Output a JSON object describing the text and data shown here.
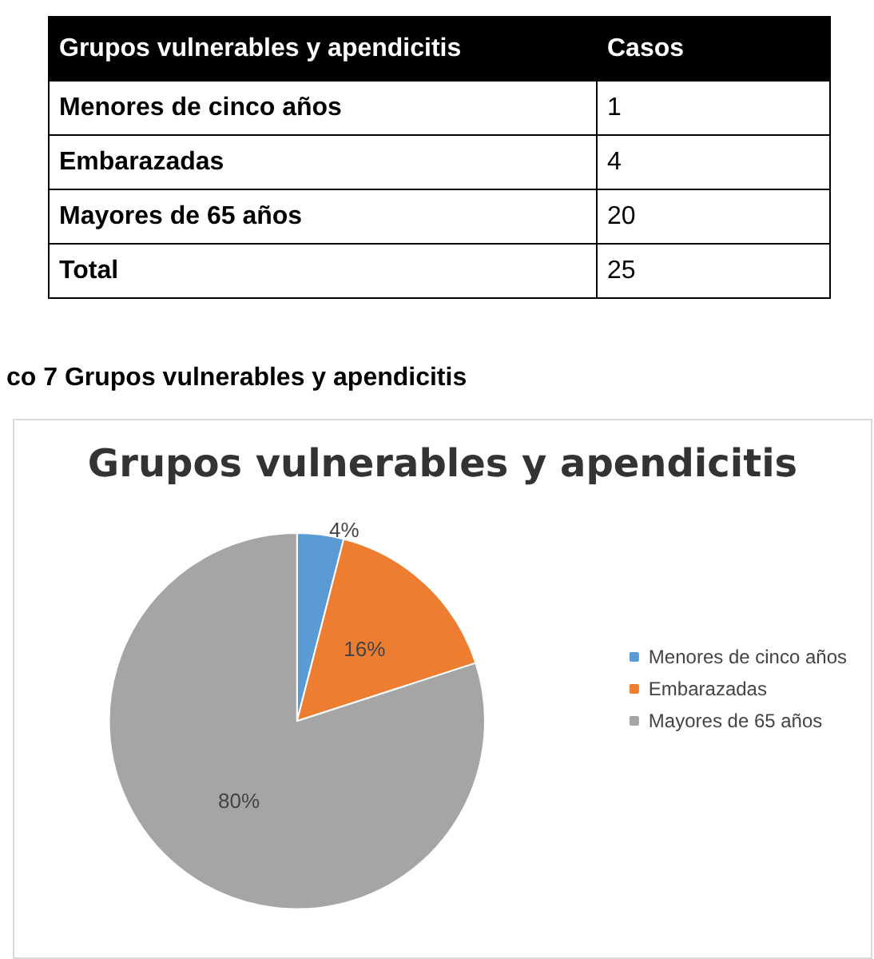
{
  "chart_data": {
    "type": "pie",
    "title": "Grupos vulnerables y apendicitis",
    "categories": [
      "Menores de cinco años",
      "Embarazadas",
      "Mayores de 65 años"
    ],
    "values": [
      4,
      16,
      80
    ],
    "value_labels": [
      "4%",
      "16%",
      "80%"
    ],
    "colors": [
      "#5b9bd5",
      "#ed7d31",
      "#a5a5a5"
    ],
    "legend": "right",
    "annotations": [
      "Grupos vulnerables y apendicitis",
      "Casos",
      "Total",
      "25",
      "co 7 Grupos vulnerables y apendicitis",
      "1",
      "4",
      "20"
    ]
  }
}
